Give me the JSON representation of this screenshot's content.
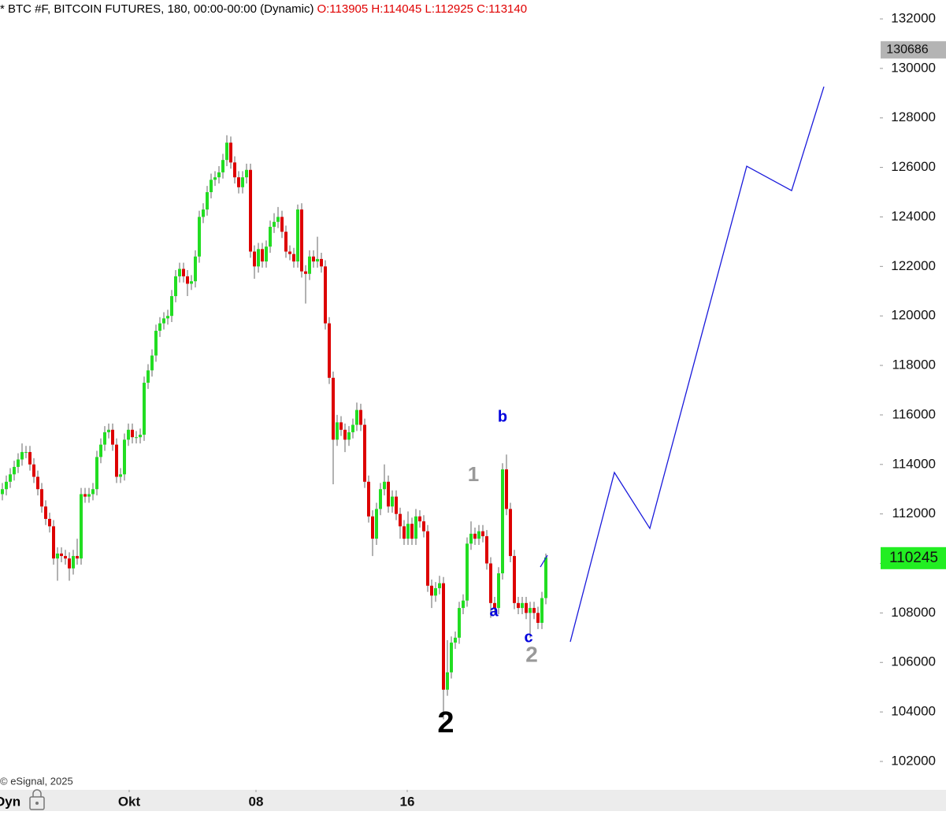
{
  "chart_data": {
    "type": "candlestick",
    "title": "* BTC #F, BITCOIN FUTURES, 180, 00:00-00:00 (Dynamic)",
    "ohlc_text": "O:113905 H:114045 L:112925 C:113140",
    "copyright": "© eSignal, 2025",
    "mode_label": "Dyn",
    "up_color": "#22dd22",
    "down_color": "#dd0000",
    "ylim": [
      100854,
      132764
    ],
    "yticks": [
      102000,
      104000,
      106000,
      108000,
      110000,
      112000,
      114000,
      116000,
      118000,
      120000,
      122000,
      124000,
      126000,
      128000,
      130000,
      132000
    ],
    "xlim": [
      -0.6,
      222.8
    ],
    "xticks": [
      {
        "value": 32.2,
        "label": "Okt"
      },
      {
        "value": 64.4,
        "label": "08"
      },
      {
        "value": 102.8,
        "label": "16"
      }
    ],
    "price_markers": [
      {
        "value": 130686,
        "color": "#b4b4b4"
      },
      {
        "value": 110245,
        "color": "#22ee22"
      }
    ],
    "annotations": [
      {
        "text": "b",
        "color": "#0000dd"
      },
      {
        "text": "1",
        "color": "#999999"
      },
      {
        "text": "a",
        "color": "#0000dd"
      },
      {
        "text": "c",
        "color": "#0000dd"
      },
      {
        "text": "2",
        "color": "#999999"
      },
      {
        "text": "2",
        "color": "#000000"
      }
    ],
    "lines": [
      {
        "color": "#1a1adb",
        "x": [
          136.6,
          138.4
        ],
        "values": [
          109855,
          110330
        ]
      },
      {
        "color": "#1a1adb",
        "x": [
          144.2,
          155.4,
          164.4,
          189,
          200.4,
          208.6
        ],
        "values": [
          106833,
          113674,
          111415,
          126050,
          125064,
          129264
        ]
      }
    ],
    "ohlc": [
      [
        112800,
        113250,
        112550,
        113000
      ],
      [
        113000,
        113550,
        112750,
        113300
      ],
      [
        113300,
        113850,
        113050,
        113600
      ],
      [
        113600,
        114150,
        113350,
        113900
      ],
      [
        113900,
        114450,
        113650,
        114200
      ],
      [
        114200,
        114850,
        113950,
        114500
      ],
      [
        114500,
        114750,
        114250,
        114500
      ],
      [
        114500,
        114750,
        113750,
        114000
      ],
      [
        114000,
        114250,
        113250,
        113500
      ],
      [
        113500,
        113750,
        112750,
        113000
      ],
      [
        113000,
        113250,
        112050,
        112300
      ],
      [
        112300,
        112550,
        111550,
        111800
      ],
      [
        111800,
        112050,
        111250,
        111500
      ],
      [
        111500,
        111750,
        109950,
        110200
      ],
      [
        110200,
        110650,
        109300,
        110400
      ],
      [
        110400,
        110650,
        110050,
        110300
      ],
      [
        110300,
        110550,
        109950,
        110200
      ],
      [
        110200,
        110450,
        109300,
        109800
      ],
      [
        109800,
        110550,
        109550,
        110300
      ],
      [
        110300,
        111000,
        109950,
        110200
      ],
      [
        110200,
        113050,
        109950,
        112800
      ],
      [
        112800,
        113050,
        112450,
        112700
      ],
      [
        112700,
        113050,
        112450,
        112800
      ],
      [
        112800,
        113250,
        112550,
        113000
      ],
      [
        113000,
        114550,
        112750,
        114300
      ],
      [
        114300,
        115050,
        114050,
        114800
      ],
      [
        114800,
        115550,
        114550,
        115300
      ],
      [
        115300,
        115650,
        115050,
        115400
      ],
      [
        115400,
        115650,
        114550,
        114800
      ],
      [
        114800,
        115050,
        113250,
        113500
      ],
      [
        113500,
        113850,
        113250,
        113600
      ],
      [
        113600,
        115250,
        113350,
        115000
      ],
      [
        115000,
        115650,
        114750,
        115400
      ],
      [
        115400,
        115650,
        114850,
        115100
      ],
      [
        115100,
        115350,
        114850,
        115100
      ],
      [
        115100,
        115450,
        114850,
        115200
      ],
      [
        115200,
        117550,
        114950,
        117300
      ],
      [
        117300,
        118050,
        117050,
        117800
      ],
      [
        117800,
        118650,
        117550,
        118400
      ],
      [
        118400,
        119650,
        118150,
        119400
      ],
      [
        119400,
        119950,
        119150,
        119700
      ],
      [
        119700,
        120150,
        119450,
        119900
      ],
      [
        119900,
        120250,
        119650,
        120000
      ],
      [
        120000,
        121050,
        119750,
        120800
      ],
      [
        120800,
        121850,
        120550,
        121600
      ],
      [
        121600,
        122150,
        121350,
        121900
      ],
      [
        121900,
        122150,
        121350,
        121600
      ],
      [
        121600,
        121850,
        120800,
        121300
      ],
      [
        121300,
        121650,
        121050,
        121400
      ],
      [
        121400,
        122650,
        121150,
        122400
      ],
      [
        122400,
        124250,
        122150,
        124000
      ],
      [
        124000,
        124550,
        123750,
        124300
      ],
      [
        124300,
        125250,
        124050,
        125000
      ],
      [
        125000,
        125750,
        124750,
        125500
      ],
      [
        125500,
        125850,
        125250,
        125600
      ],
      [
        125600,
        126050,
        125350,
        125800
      ],
      [
        125800,
        126550,
        125550,
        126300
      ],
      [
        126300,
        127300,
        126050,
        127000
      ],
      [
        127000,
        127250,
        125950,
        126200
      ],
      [
        126200,
        126450,
        125350,
        125600
      ],
      [
        125600,
        125850,
        124950,
        125200
      ],
      [
        125200,
        125850,
        124950,
        125600
      ],
      [
        125600,
        126150,
        125350,
        125900
      ],
      [
        125900,
        126150,
        122350,
        122600
      ],
      [
        122600,
        122850,
        121500,
        122000
      ],
      [
        122000,
        122950,
        121750,
        122700
      ],
      [
        122700,
        122950,
        121950,
        122200
      ],
      [
        122200,
        123050,
        121950,
        122800
      ],
      [
        122800,
        123850,
        122550,
        123600
      ],
      [
        123600,
        124150,
        123350,
        123800
      ],
      [
        123800,
        124400,
        123550,
        124000
      ],
      [
        124000,
        124250,
        123150,
        123400
      ],
      [
        123400,
        123650,
        122350,
        122600
      ],
      [
        122600,
        122850,
        122250,
        122500
      ],
      [
        122500,
        122750,
        121950,
        122200
      ],
      [
        122200,
        124500,
        121950,
        124300
      ],
      [
        124300,
        124550,
        121550,
        121800
      ],
      [
        121800,
        122050,
        120500,
        121700
      ],
      [
        121700,
        122650,
        121450,
        122400
      ],
      [
        122400,
        122650,
        121950,
        122200
      ],
      [
        122200,
        123200,
        121950,
        122300
      ],
      [
        122300,
        122550,
        121750,
        122000
      ],
      [
        122000,
        122250,
        119450,
        119700
      ],
      [
        119700,
        119950,
        117250,
        117500
      ],
      [
        117500,
        117750,
        113200,
        115000
      ],
      [
        115000,
        116000,
        114750,
        115700
      ],
      [
        115700,
        115950,
        115150,
        115400
      ],
      [
        115400,
        115650,
        114500,
        115000
      ],
      [
        115000,
        115550,
        114750,
        115300
      ],
      [
        115300,
        115850,
        115050,
        115600
      ],
      [
        115600,
        116500,
        115350,
        116200
      ],
      [
        116200,
        116450,
        115350,
        115600
      ],
      [
        115600,
        115850,
        113050,
        113300
      ],
      [
        113300,
        113550,
        111650,
        111900
      ],
      [
        111900,
        112150,
        110300,
        111000
      ],
      [
        111000,
        112450,
        110750,
        112200
      ],
      [
        112200,
        113250,
        111950,
        113000
      ],
      [
        113000,
        114000,
        112750,
        113300
      ],
      [
        113300,
        113550,
        112050,
        112300
      ],
      [
        112300,
        112950,
        112050,
        112700
      ],
      [
        112700,
        112950,
        111750,
        112000
      ],
      [
        112000,
        112250,
        111000,
        111500
      ],
      [
        111500,
        111750,
        110750,
        111000
      ],
      [
        111000,
        112100,
        110750,
        111600
      ],
      [
        111600,
        111850,
        110750,
        111000
      ],
      [
        111000,
        112200,
        110750,
        111900
      ],
      [
        111900,
        112150,
        111450,
        111700
      ],
      [
        111700,
        111950,
        111050,
        111300
      ],
      [
        111300,
        111550,
        108850,
        109100
      ],
      [
        109100,
        109350,
        108200,
        108700
      ],
      [
        108700,
        109250,
        108450,
        109000
      ],
      [
        109000,
        109500,
        108750,
        109200
      ],
      [
        109200,
        109450,
        103700,
        104900
      ],
      [
        104900,
        106900,
        104650,
        105600
      ],
      [
        105600,
        107050,
        105350,
        106800
      ],
      [
        106800,
        107250,
        106550,
        107000
      ],
      [
        107000,
        108450,
        106750,
        108200
      ],
      [
        108200,
        108750,
        107950,
        108500
      ],
      [
        108500,
        111050,
        108250,
        110800
      ],
      [
        110800,
        111700,
        110550,
        111200
      ],
      [
        111200,
        111450,
        110750,
        111000
      ],
      [
        111000,
        111550,
        110750,
        111300
      ],
      [
        111300,
        111550,
        110850,
        111100
      ],
      [
        111100,
        111350,
        109750,
        110000
      ],
      [
        110000,
        110250,
        107800,
        108400
      ],
      [
        108400,
        108650,
        107950,
        108200
      ],
      [
        108200,
        109850,
        107950,
        109600
      ],
      [
        109600,
        114050,
        109350,
        113800
      ],
      [
        113800,
        114400,
        111950,
        112200
      ],
      [
        112200,
        112450,
        110050,
        110300
      ],
      [
        110300,
        110550,
        108150,
        108400
      ],
      [
        108400,
        108650,
        107950,
        108200
      ],
      [
        108200,
        108650,
        107950,
        108400
      ],
      [
        108400,
        108650,
        107750,
        108000
      ],
      [
        108000,
        108450,
        107000,
        108200
      ],
      [
        108200,
        108450,
        107750,
        108000
      ],
      [
        108000,
        108250,
        107350,
        107600
      ],
      [
        107600,
        108850,
        107350,
        108600
      ],
      [
        108600,
        110400,
        108350,
        110245
      ]
    ]
  }
}
